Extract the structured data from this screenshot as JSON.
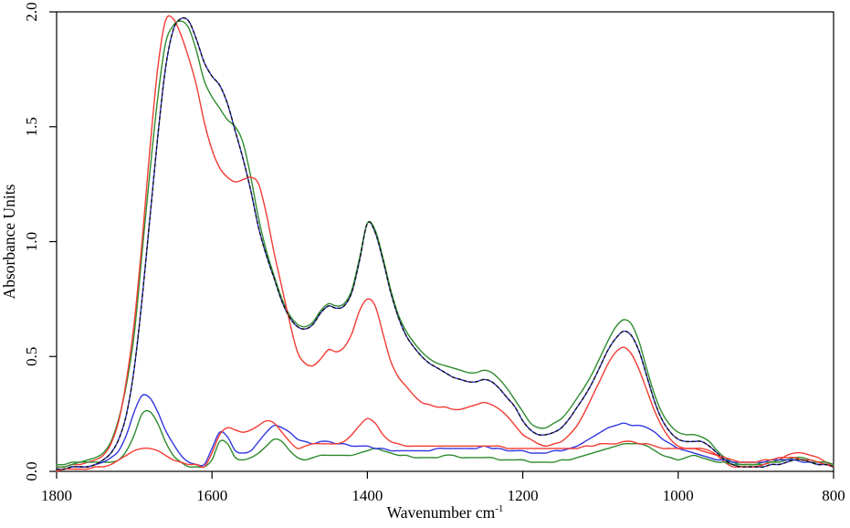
{
  "figure": {
    "background": "#ffffff"
  },
  "chart_data": {
    "type": "line",
    "title": "",
    "xlabel": "Wavenumber cm",
    "xlabel_superscript": "-1",
    "ylabel": "Absorbance Units",
    "xlim": [
      1800,
      800
    ],
    "ylim": [
      0.0,
      2.0
    ],
    "x_reversed": true,
    "grid": false,
    "legend": null,
    "axis_color": "#000000",
    "x_ticks": [
      1800,
      1600,
      1400,
      1200,
      1000,
      800
    ],
    "y_ticks": [
      "0.0",
      "0.5",
      "1.0",
      "1.5",
      "2.0"
    ],
    "x": [
      1800,
      1790,
      1780,
      1770,
      1760,
      1750,
      1740,
      1730,
      1720,
      1710,
      1700,
      1690,
      1680,
      1670,
      1660,
      1650,
      1640,
      1630,
      1620,
      1610,
      1600,
      1590,
      1580,
      1570,
      1560,
      1550,
      1540,
      1530,
      1520,
      1510,
      1500,
      1490,
      1480,
      1470,
      1460,
      1450,
      1440,
      1430,
      1420,
      1410,
      1400,
      1390,
      1380,
      1370,
      1360,
      1350,
      1340,
      1330,
      1320,
      1310,
      1300,
      1290,
      1280,
      1270,
      1260,
      1250,
      1240,
      1230,
      1220,
      1210,
      1200,
      1190,
      1180,
      1170,
      1160,
      1150,
      1140,
      1130,
      1120,
      1110,
      1100,
      1090,
      1080,
      1070,
      1060,
      1050,
      1040,
      1030,
      1020,
      1010,
      1000,
      990,
      980,
      970,
      960,
      950,
      940,
      930,
      920,
      910,
      900,
      890,
      880,
      870,
      860,
      850,
      840,
      830,
      820,
      810,
      800
    ],
    "series": [
      {
        "name": "blue-high",
        "color": "#3236e0",
        "style": "solid",
        "values": [
          0.01,
          0.01,
          0.02,
          0.02,
          0.02,
          0.03,
          0.05,
          0.08,
          0.14,
          0.25,
          0.45,
          0.75,
          1.1,
          1.45,
          1.75,
          1.92,
          1.97,
          1.96,
          1.88,
          1.78,
          1.72,
          1.68,
          1.6,
          1.48,
          1.36,
          1.22,
          1.06,
          0.94,
          0.84,
          0.74,
          0.67,
          0.63,
          0.62,
          0.64,
          0.69,
          0.72,
          0.71,
          0.72,
          0.78,
          0.92,
          1.08,
          1.04,
          0.92,
          0.78,
          0.67,
          0.59,
          0.54,
          0.5,
          0.47,
          0.45,
          0.43,
          0.41,
          0.4,
          0.39,
          0.39,
          0.4,
          0.39,
          0.36,
          0.32,
          0.28,
          0.22,
          0.18,
          0.16,
          0.16,
          0.17,
          0.19,
          0.23,
          0.28,
          0.33,
          0.39,
          0.46,
          0.53,
          0.58,
          0.61,
          0.59,
          0.52,
          0.41,
          0.3,
          0.22,
          0.17,
          0.14,
          0.13,
          0.13,
          0.13,
          0.11,
          0.08,
          0.05,
          0.03,
          0.02,
          0.02,
          0.02,
          0.02,
          0.03,
          0.03,
          0.04,
          0.05,
          0.05,
          0.04,
          0.03,
          0.03,
          0.02
        ]
      },
      {
        "name": "green-high",
        "color": "#2e8b2e",
        "style": "solid",
        "values": [
          0.03,
          0.03,
          0.04,
          0.04,
          0.05,
          0.06,
          0.08,
          0.13,
          0.23,
          0.38,
          0.6,
          0.95,
          1.3,
          1.62,
          1.86,
          1.94,
          1.96,
          1.93,
          1.83,
          1.7,
          1.63,
          1.58,
          1.53,
          1.5,
          1.43,
          1.28,
          1.1,
          0.96,
          0.85,
          0.75,
          0.68,
          0.64,
          0.63,
          0.65,
          0.7,
          0.73,
          0.72,
          0.73,
          0.79,
          0.93,
          1.08,
          1.05,
          0.93,
          0.79,
          0.68,
          0.61,
          0.56,
          0.52,
          0.49,
          0.47,
          0.46,
          0.45,
          0.44,
          0.43,
          0.43,
          0.44,
          0.43,
          0.4,
          0.36,
          0.31,
          0.26,
          0.21,
          0.19,
          0.19,
          0.21,
          0.23,
          0.27,
          0.32,
          0.37,
          0.43,
          0.5,
          0.57,
          0.63,
          0.66,
          0.64,
          0.56,
          0.44,
          0.33,
          0.25,
          0.2,
          0.17,
          0.16,
          0.16,
          0.15,
          0.13,
          0.09,
          0.06,
          0.04,
          0.03,
          0.03,
          0.03,
          0.03,
          0.04,
          0.04,
          0.05,
          0.06,
          0.06,
          0.05,
          0.04,
          0.04,
          0.03
        ]
      },
      {
        "name": "red-high",
        "color": "#f23b33",
        "style": "solid",
        "values": [
          0.02,
          0.02,
          0.03,
          0.03,
          0.04,
          0.05,
          0.07,
          0.12,
          0.22,
          0.4,
          0.65,
          1.0,
          1.4,
          1.75,
          1.96,
          1.97,
          1.9,
          1.8,
          1.68,
          1.52,
          1.4,
          1.32,
          1.28,
          1.26,
          1.27,
          1.28,
          1.25,
          1.12,
          0.95,
          0.8,
          0.65,
          0.52,
          0.47,
          0.46,
          0.49,
          0.53,
          0.52,
          0.54,
          0.6,
          0.7,
          0.75,
          0.72,
          0.6,
          0.48,
          0.41,
          0.37,
          0.33,
          0.3,
          0.29,
          0.28,
          0.28,
          0.27,
          0.27,
          0.28,
          0.29,
          0.3,
          0.29,
          0.27,
          0.24,
          0.2,
          0.16,
          0.14,
          0.12,
          0.11,
          0.12,
          0.13,
          0.16,
          0.2,
          0.26,
          0.33,
          0.4,
          0.47,
          0.52,
          0.54,
          0.51,
          0.44,
          0.35,
          0.26,
          0.19,
          0.14,
          0.11,
          0.1,
          0.1,
          0.1,
          0.09,
          0.07,
          0.04,
          0.02,
          0.02,
          0.02,
          0.02,
          0.03,
          0.04,
          0.05,
          0.07,
          0.08,
          0.08,
          0.07,
          0.06,
          0.04,
          0.02
        ]
      },
      {
        "name": "green-low",
        "color": "#2e8b2e",
        "style": "solid",
        "values": [
          0.02,
          0.02,
          0.03,
          0.04,
          0.04,
          0.04,
          0.04,
          0.04,
          0.05,
          0.09,
          0.16,
          0.25,
          0.26,
          0.21,
          0.13,
          0.07,
          0.04,
          0.02,
          0.02,
          0.02,
          0.05,
          0.13,
          0.12,
          0.06,
          0.05,
          0.06,
          0.08,
          0.11,
          0.14,
          0.13,
          0.09,
          0.06,
          0.05,
          0.06,
          0.07,
          0.07,
          0.07,
          0.07,
          0.07,
          0.08,
          0.09,
          0.1,
          0.09,
          0.08,
          0.07,
          0.07,
          0.06,
          0.06,
          0.06,
          0.06,
          0.07,
          0.07,
          0.06,
          0.06,
          0.06,
          0.06,
          0.06,
          0.05,
          0.05,
          0.05,
          0.05,
          0.04,
          0.04,
          0.04,
          0.04,
          0.05,
          0.05,
          0.06,
          0.07,
          0.08,
          0.09,
          0.1,
          0.11,
          0.12,
          0.12,
          0.12,
          0.11,
          0.09,
          0.07,
          0.06,
          0.05,
          0.06,
          0.07,
          0.06,
          0.05,
          0.04,
          0.04,
          0.03,
          0.03,
          0.03,
          0.03,
          0.04,
          0.04,
          0.05,
          0.05,
          0.05,
          0.05,
          0.04,
          0.04,
          0.04,
          0.03
        ]
      },
      {
        "name": "blue-low",
        "color": "#3236e0",
        "style": "solid",
        "values": [
          0.01,
          0.01,
          0.02,
          0.02,
          0.02,
          0.03,
          0.04,
          0.06,
          0.09,
          0.16,
          0.26,
          0.33,
          0.32,
          0.26,
          0.18,
          0.12,
          0.07,
          0.04,
          0.03,
          0.03,
          0.1,
          0.17,
          0.15,
          0.09,
          0.08,
          0.09,
          0.13,
          0.17,
          0.2,
          0.19,
          0.17,
          0.14,
          0.13,
          0.12,
          0.13,
          0.13,
          0.12,
          0.12,
          0.11,
          0.11,
          0.11,
          0.1,
          0.1,
          0.09,
          0.09,
          0.09,
          0.09,
          0.09,
          0.09,
          0.1,
          0.1,
          0.1,
          0.1,
          0.1,
          0.1,
          0.11,
          0.1,
          0.1,
          0.09,
          0.09,
          0.09,
          0.08,
          0.08,
          0.08,
          0.09,
          0.09,
          0.1,
          0.11,
          0.13,
          0.15,
          0.17,
          0.19,
          0.2,
          0.21,
          0.2,
          0.2,
          0.19,
          0.17,
          0.14,
          0.12,
          0.1,
          0.09,
          0.08,
          0.07,
          0.06,
          0.05,
          0.05,
          0.04,
          0.04,
          0.04,
          0.04,
          0.04,
          0.05,
          0.05,
          0.05,
          0.05,
          0.04,
          0.04,
          0.03,
          0.03,
          0.02
        ]
      },
      {
        "name": "red-low",
        "color": "#f23b33",
        "style": "solid",
        "values": [
          0.0,
          0.01,
          0.01,
          0.01,
          0.01,
          0.02,
          0.02,
          0.03,
          0.05,
          0.07,
          0.09,
          0.1,
          0.1,
          0.09,
          0.07,
          0.05,
          0.04,
          0.03,
          0.03,
          0.02,
          0.08,
          0.16,
          0.19,
          0.18,
          0.17,
          0.18,
          0.2,
          0.22,
          0.21,
          0.17,
          0.13,
          0.1,
          0.11,
          0.12,
          0.12,
          0.12,
          0.12,
          0.13,
          0.16,
          0.2,
          0.23,
          0.21,
          0.16,
          0.13,
          0.12,
          0.11,
          0.11,
          0.11,
          0.11,
          0.11,
          0.11,
          0.11,
          0.11,
          0.11,
          0.11,
          0.11,
          0.11,
          0.11,
          0.1,
          0.1,
          0.1,
          0.1,
          0.1,
          0.1,
          0.1,
          0.1,
          0.1,
          0.1,
          0.11,
          0.11,
          0.12,
          0.12,
          0.12,
          0.13,
          0.13,
          0.12,
          0.12,
          0.11,
          0.1,
          0.1,
          0.1,
          0.1,
          0.1,
          0.09,
          0.08,
          0.07,
          0.06,
          0.05,
          0.04,
          0.04,
          0.04,
          0.05,
          0.05,
          0.06,
          0.06,
          0.06,
          0.05,
          0.05,
          0.04,
          0.03,
          0.02
        ]
      },
      {
        "name": "black-dotted",
        "color": "#141414",
        "style": "dashed",
        "values": [
          0.01,
          0.01,
          0.02,
          0.02,
          0.02,
          0.03,
          0.05,
          0.08,
          0.14,
          0.25,
          0.45,
          0.75,
          1.1,
          1.45,
          1.75,
          1.92,
          1.97,
          1.96,
          1.88,
          1.78,
          1.72,
          1.68,
          1.6,
          1.48,
          1.36,
          1.22,
          1.06,
          0.94,
          0.84,
          0.74,
          0.67,
          0.63,
          0.62,
          0.64,
          0.69,
          0.72,
          0.71,
          0.72,
          0.78,
          0.92,
          1.08,
          1.04,
          0.92,
          0.78,
          0.67,
          0.59,
          0.54,
          0.5,
          0.47,
          0.45,
          0.43,
          0.41,
          0.4,
          0.39,
          0.39,
          0.4,
          0.39,
          0.36,
          0.32,
          0.28,
          0.22,
          0.18,
          0.16,
          0.16,
          0.17,
          0.19,
          0.23,
          0.28,
          0.33,
          0.39,
          0.46,
          0.53,
          0.58,
          0.61,
          0.59,
          0.52,
          0.41,
          0.3,
          0.22,
          0.17,
          0.14,
          0.13,
          0.13,
          0.13,
          0.11,
          0.08,
          0.05,
          0.03,
          0.02,
          0.02,
          0.02,
          0.02,
          0.03,
          0.03,
          0.04,
          0.05,
          0.05,
          0.04,
          0.03,
          0.03,
          0.02
        ]
      }
    ]
  }
}
